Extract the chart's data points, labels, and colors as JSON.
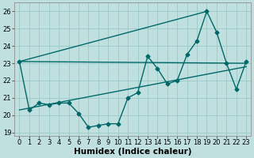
{
  "xlabel": "Humidex (Indice chaleur)",
  "ylabel": "",
  "bg_color": "#c0e0e0",
  "grid_color": "#a0cccc",
  "line_color": "#006868",
  "xlim": [
    -0.5,
    23.5
  ],
  "ylim": [
    18.8,
    26.5
  ],
  "yticks": [
    19,
    20,
    21,
    22,
    23,
    24,
    25,
    26
  ],
  "xticks": [
    0,
    1,
    2,
    3,
    4,
    5,
    6,
    7,
    8,
    9,
    10,
    11,
    12,
    13,
    14,
    15,
    16,
    17,
    18,
    19,
    20,
    21,
    22,
    23
  ],
  "line1_x": [
    0,
    1,
    2,
    3,
    4,
    5,
    6,
    7,
    8,
    9,
    10,
    11,
    12,
    13,
    14,
    15,
    16,
    17,
    18,
    19,
    20,
    21,
    22,
    23
  ],
  "line1_y": [
    23.1,
    20.3,
    20.7,
    20.6,
    20.7,
    20.7,
    20.1,
    19.3,
    19.4,
    19.5,
    19.5,
    21.0,
    21.3,
    23.4,
    22.7,
    21.8,
    22.0,
    23.5,
    24.3,
    26.0,
    24.8,
    23.0,
    21.5,
    23.1
  ],
  "line2_x": [
    0,
    23
  ],
  "line2_y": [
    23.1,
    23.0
  ],
  "line3_x": [
    0,
    23
  ],
  "line3_y": [
    20.3,
    22.8
  ],
  "line4_x": [
    0,
    19
  ],
  "line4_y": [
    23.1,
    26.0
  ],
  "marker": "D",
  "markersize": 2.5,
  "linewidth": 1.0,
  "xlabel_fontsize": 7.5,
  "tick_fontsize": 6
}
